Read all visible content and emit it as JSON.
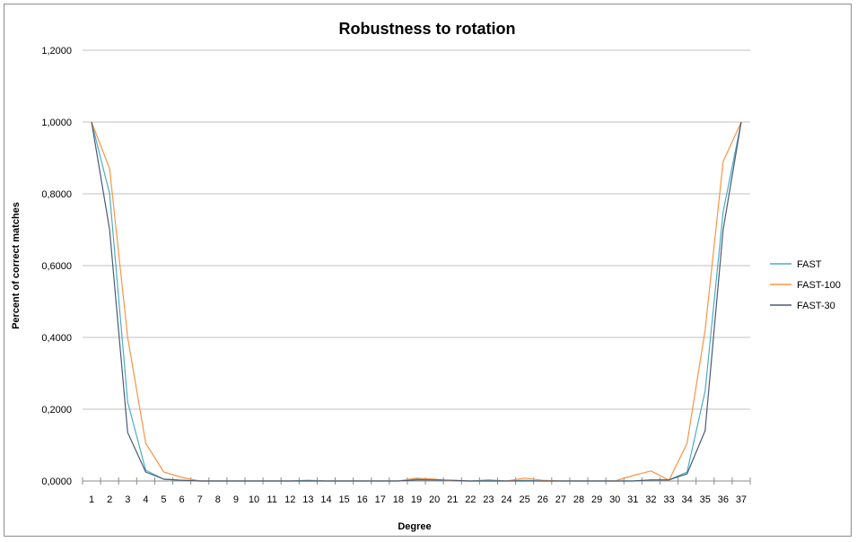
{
  "chart_data": {
    "type": "line",
    "title": "Robustness to rotation",
    "xlabel": "Degree",
    "ylabel": "Percent of correct matches",
    "ylim": [
      0,
      1.2
    ],
    "yticks": [
      "0,0000",
      "0,2000",
      "0,4000",
      "0,6000",
      "0,8000",
      "1,0000",
      "1,2000"
    ],
    "ytick_values": [
      0,
      0.2,
      0.4,
      0.6,
      0.8,
      1.0,
      1.2
    ],
    "grid": "horizontal",
    "legend_position": "right",
    "x": [
      "1",
      "2",
      "3",
      "4",
      "5",
      "6",
      "7",
      "8",
      "9",
      "10",
      "11",
      "12",
      "13",
      "14",
      "15",
      "16",
      "17",
      "18",
      "19",
      "20",
      "21",
      "22",
      "23",
      "24",
      "25",
      "26",
      "27",
      "28",
      "29",
      "30",
      "31",
      "32",
      "33",
      "34",
      "35",
      "36",
      "37"
    ],
    "series": [
      {
        "name": "FAST",
        "color": "#4bacc6",
        "values": [
          1.0,
          0.8,
          0.22,
          0.03,
          0.005,
          0.002,
          0,
          0,
          0,
          0,
          0,
          0,
          0.002,
          0,
          0,
          0,
          0,
          0,
          0.005,
          0.003,
          0,
          0,
          0.003,
          0,
          0.002,
          0,
          0,
          0,
          0,
          0,
          0,
          0.003,
          0.003,
          0.025,
          0.25,
          0.75,
          1.0
        ]
      },
      {
        "name": "FAST-100",
        "color": "#f79646",
        "values": [
          1.0,
          0.87,
          0.4,
          0.105,
          0.025,
          0.01,
          0,
          0,
          0,
          0,
          0,
          0,
          0,
          0,
          0,
          0,
          0,
          0,
          0.008,
          0.005,
          0,
          0,
          0,
          0,
          0.008,
          0.002,
          0,
          0,
          0,
          0,
          0.015,
          0.028,
          0.002,
          0.105,
          0.42,
          0.89,
          1.0
        ]
      },
      {
        "name": "FAST-30",
        "color": "#4a5a75",
        "values": [
          1.0,
          0.7,
          0.135,
          0.025,
          0.005,
          0.002,
          0,
          0,
          0,
          0,
          0,
          0,
          0,
          0,
          0,
          0,
          0,
          0,
          0.003,
          0.003,
          0.002,
          0,
          0,
          0,
          0,
          0,
          0,
          0,
          0,
          0,
          0,
          0.003,
          0.003,
          0.02,
          0.14,
          0.7,
          1.0
        ]
      }
    ]
  }
}
